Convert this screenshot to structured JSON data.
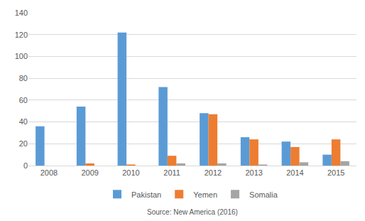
{
  "chart_data": {
    "type": "bar",
    "categories": [
      "2008",
      "2009",
      "2010",
      "2011",
      "2012",
      "2013",
      "2014",
      "2015"
    ],
    "series": [
      {
        "name": "Pakistan",
        "color": "#5b9bd5",
        "values": [
          36,
          54,
          122,
          72,
          48,
          26,
          22,
          10
        ]
      },
      {
        "name": "Yemen",
        "color": "#ed7d31",
        "values": [
          0,
          2,
          1,
          9,
          47,
          24,
          17,
          24
        ]
      },
      {
        "name": "Somalia",
        "color": "#a5a5a5",
        "values": [
          0,
          0,
          0,
          2,
          2,
          1,
          3,
          4
        ]
      }
    ],
    "ylim": [
      0,
      140
    ],
    "yticks": [
      0,
      20,
      40,
      60,
      80,
      100,
      120,
      140
    ],
    "grid": true,
    "legend": "bottom",
    "annotations": [
      "Source: New America (2016)"
    ]
  }
}
